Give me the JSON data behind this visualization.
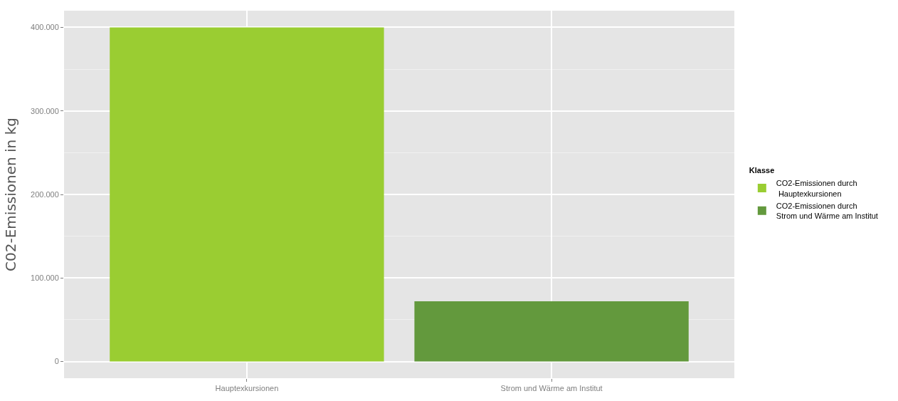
{
  "chart_data": {
    "type": "bar",
    "ylabel": "C02-Emissionen in kg",
    "legend_title": "Klasse",
    "categories": [
      "Hauptexkursionen",
      "Strom und Wärme am Institut"
    ],
    "series": [
      {
        "name": "CO2-Emissionen durch\n Hauptexkursionen",
        "color": "#9acd32",
        "values": [
          400000,
          null
        ]
      },
      {
        "name": "CO2-Emissionen durch\nStrom und Wärme am Institut",
        "color": "#63993d",
        "values": [
          null,
          72000
        ]
      }
    ],
    "ylim": [
      -20000,
      420000
    ],
    "yticks": [
      {
        "value": 0,
        "label": "0"
      },
      {
        "value": 100000,
        "label": "100.000"
      },
      {
        "value": 200000,
        "label": "200.000"
      },
      {
        "value": 300000,
        "label": "300.000"
      },
      {
        "value": 400000,
        "label": "400.000"
      }
    ],
    "grid": true,
    "legend": "right"
  }
}
